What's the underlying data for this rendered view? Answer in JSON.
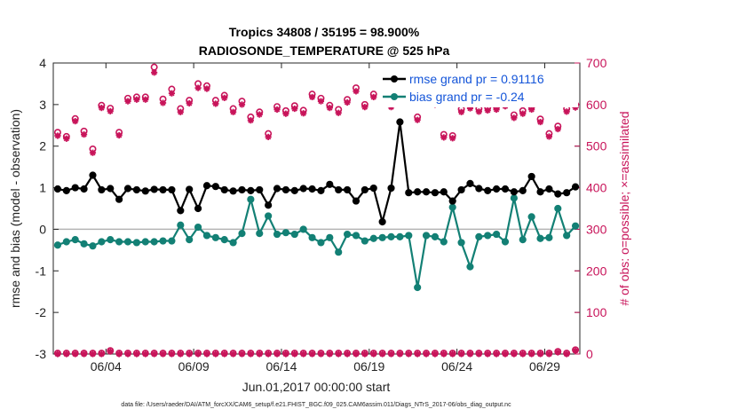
{
  "chart_data": {
    "type": "line",
    "title": "Tropics 34808 / 35195 = 98.900%",
    "subtitle": "RADIOSONDE_TEMPERATURE @ 525 hPa",
    "xlabel": "Jun.01,2017 00:00:00 start",
    "ylabel": "rmse and bias (model - observation)",
    "y2label": "# of obs: o=possible; ×=assimilated",
    "footer": "data file: /Users/raeder/DAI/ATM_forcXX/CAM6_setup/f.e21.FHIST_BGC.f09_025.CAM6assim.011/Diags_NTrS_2017-06/obs_diag_output.nc",
    "x_tick_labels": [
      "06/04",
      "06/09",
      "06/14",
      "06/19",
      "06/24",
      "06/29"
    ],
    "x_tick_values": [
      4,
      9,
      14,
      19,
      24,
      29
    ],
    "xlim": [
      1,
      31
    ],
    "ylim": [
      -3,
      4
    ],
    "y_ticks": [
      "-3",
      "-2",
      "-1",
      "0",
      "1",
      "2",
      "3",
      "4"
    ],
    "y2lim": [
      0,
      700
    ],
    "y2_ticks": [
      "0",
      "100",
      "200",
      "300",
      "400",
      "500",
      "600",
      "700"
    ],
    "x": [
      1.25,
      1.75,
      2.25,
      2.75,
      3.25,
      3.75,
      4.25,
      4.75,
      5.25,
      5.75,
      6.25,
      6.75,
      7.25,
      7.75,
      8.25,
      8.75,
      9.25,
      9.75,
      10.25,
      10.75,
      11.25,
      11.75,
      12.25,
      12.75,
      13.25,
      13.75,
      14.25,
      14.75,
      15.25,
      15.75,
      16.25,
      16.75,
      17.25,
      17.75,
      18.25,
      18.75,
      19.25,
      19.75,
      20.25,
      20.75,
      21.25,
      21.75,
      22.25,
      22.75,
      23.25,
      23.75,
      24.25,
      24.75,
      25.25,
      25.75,
      26.25,
      26.75,
      27.25,
      27.75,
      28.25,
      28.75,
      29.25,
      29.75,
      30.25,
      30.75
    ],
    "series": [
      {
        "name": "rmse grand pr = 0.91116",
        "color": "#000000",
        "axis": "left",
        "values": [
          0.97,
          0.93,
          1.0,
          0.97,
          1.3,
          0.95,
          0.98,
          0.72,
          0.98,
          0.95,
          0.92,
          0.96,
          0.95,
          0.95,
          0.45,
          0.96,
          0.5,
          1.05,
          1.03,
          0.95,
          0.92,
          0.95,
          0.93,
          0.95,
          0.58,
          0.98,
          0.95,
          0.93,
          0.98,
          0.97,
          0.93,
          1.08,
          0.95,
          0.95,
          0.68,
          0.95,
          0.99,
          0.18,
          0.99,
          2.58,
          0.88,
          0.9,
          0.9,
          0.88,
          0.9,
          0.68,
          0.95,
          1.1,
          0.98,
          0.93,
          0.97,
          0.97,
          0.9,
          0.93,
          1.27,
          0.9,
          0.97,
          0.85,
          0.88,
          1.02
        ]
      },
      {
        "name": "bias grand pr = -0.24",
        "color": "#138075",
        "axis": "left",
        "values": [
          -0.38,
          -0.3,
          -0.25,
          -0.35,
          -0.4,
          -0.3,
          -0.25,
          -0.3,
          -0.3,
          -0.32,
          -0.3,
          -0.3,
          -0.28,
          -0.28,
          0.1,
          -0.25,
          0.05,
          -0.15,
          -0.2,
          -0.25,
          -0.32,
          -0.1,
          0.72,
          -0.1,
          0.32,
          -0.12,
          -0.08,
          -0.12,
          0.0,
          -0.2,
          -0.32,
          -0.2,
          -0.55,
          -0.12,
          -0.15,
          -0.28,
          -0.22,
          -0.2,
          -0.18,
          -0.18,
          -0.15,
          -1.4,
          -0.15,
          -0.18,
          -0.3,
          0.53,
          -0.32,
          -0.9,
          -0.18,
          -0.15,
          -0.12,
          -0.3,
          0.75,
          -0.25,
          0.3,
          -0.22,
          -0.2,
          0.5,
          -0.15,
          0.08
        ]
      },
      {
        "name": "possible",
        "color": "#c8145a",
        "axis": "right",
        "values": [
          533,
          523,
          566,
          536,
          493,
          598,
          591,
          533,
          615,
          618,
          618,
          690,
          613,
          637,
          590,
          610,
          650,
          645,
          610,
          622,
          590,
          608,
          570,
          582,
          530,
          595,
          585,
          597,
          586,
          625,
          615,
          598,
          588,
          612,
          640,
          600,
          625,
          615,
          600,
          620,
          610,
          570,
          620,
          606,
          528,
          525,
          589,
          598,
          590,
          593,
          595,
          603,
          575,
          585,
          595,
          565,
          530,
          548,
          590,
          600
        ]
      },
      {
        "name": "assimilated",
        "color": "#c8145a",
        "axis": "right",
        "values": [
          525,
          518,
          560,
          528,
          484,
          592,
          584,
          526,
          608,
          612,
          612,
          677,
          604,
          627,
          582,
          603,
          640,
          638,
          602,
          616,
          582,
          600,
          562,
          576,
          522,
          588,
          578,
          590,
          579,
          618,
          608,
          592,
          580,
          605,
          632,
          594,
          618,
          608,
          594,
          613,
          603,
          563,
          614,
          600,
          521,
          519,
          582,
          591,
          583,
          586,
          588,
          596,
          568,
          578,
          588,
          558,
          523,
          541,
          583,
          593
        ]
      },
      {
        "name": "possible-bottom",
        "color": "#c8145a",
        "axis": "right",
        "values": [
          2,
          2,
          2,
          2,
          2,
          2,
          8,
          2,
          2,
          2,
          2,
          2,
          2,
          2,
          2,
          2,
          2,
          2,
          2,
          2,
          2,
          2,
          2,
          2,
          2,
          2,
          2,
          2,
          2,
          2,
          2,
          2,
          2,
          2,
          2,
          2,
          2,
          2,
          2,
          2,
          2,
          2,
          2,
          2,
          2,
          2,
          2,
          2,
          2,
          2,
          2,
          2,
          2,
          2,
          2,
          2,
          2,
          6,
          2,
          10
        ]
      },
      {
        "name": "assimilated-bottom",
        "color": "#c8145a",
        "axis": "right",
        "values": [
          0,
          0,
          0,
          0,
          0,
          0,
          6,
          0,
          0,
          0,
          0,
          0,
          0,
          0,
          0,
          0,
          0,
          0,
          0,
          0,
          0,
          0,
          0,
          0,
          0,
          0,
          0,
          0,
          0,
          0,
          0,
          0,
          0,
          0,
          0,
          0,
          0,
          0,
          0,
          0,
          0,
          0,
          0,
          0,
          0,
          0,
          0,
          0,
          0,
          0,
          0,
          0,
          0,
          0,
          0,
          0,
          0,
          4,
          0,
          8
        ]
      }
    ],
    "legend_position": "top-right"
  }
}
